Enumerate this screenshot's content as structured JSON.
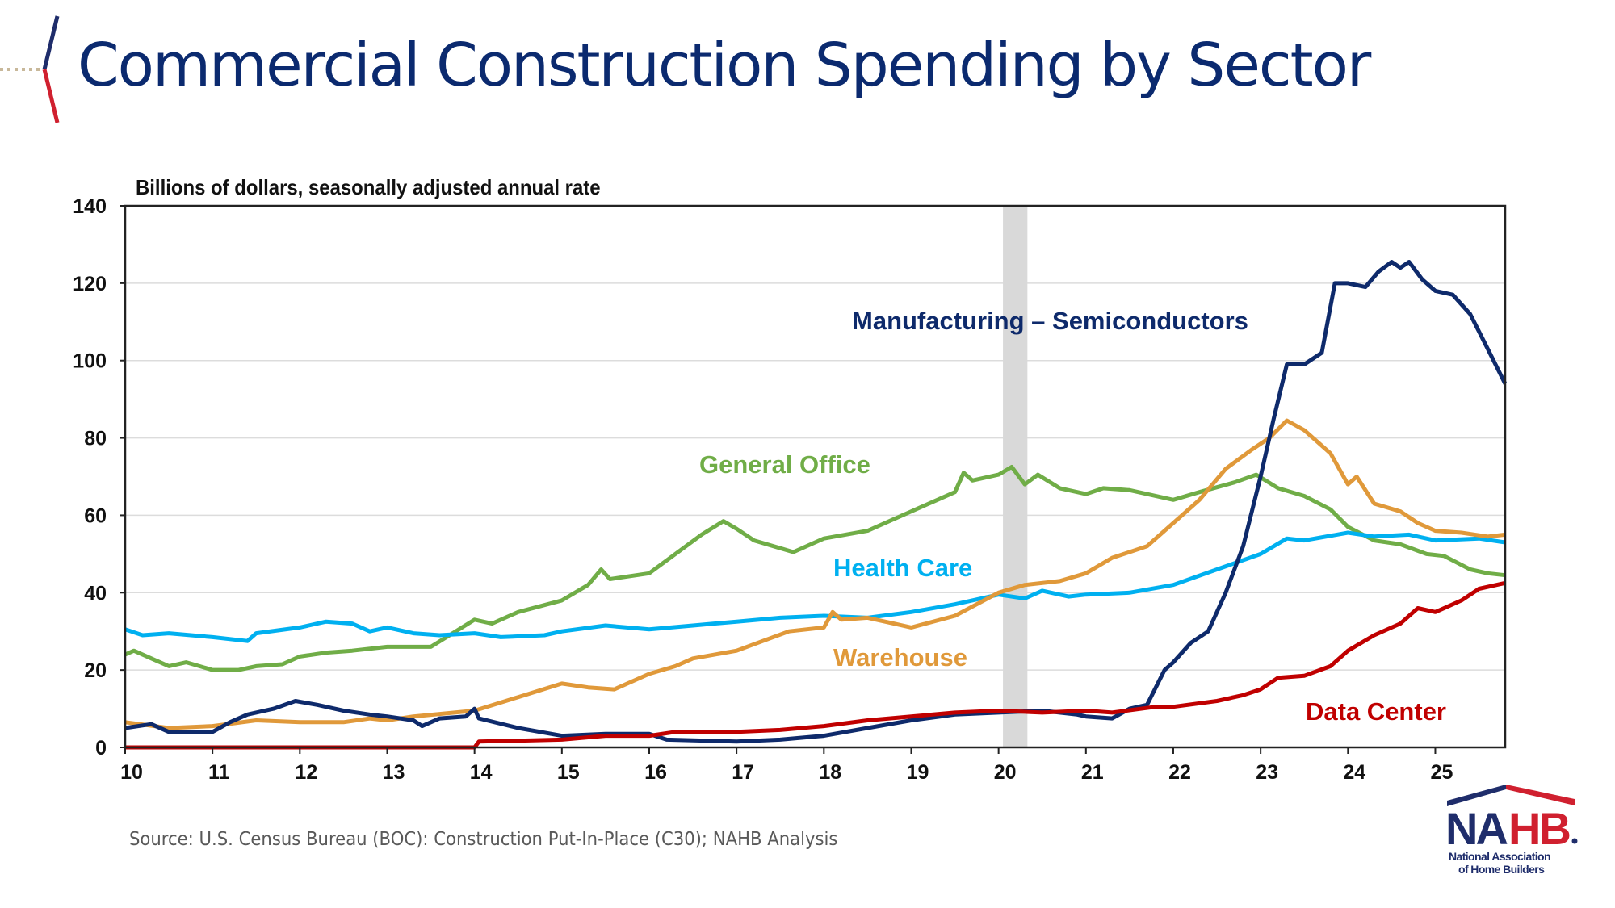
{
  "header": {
    "title": "Commercial Construction Spending by Sector"
  },
  "footer": {
    "source": "Source:  U.S. Census Bureau (BOC): Construction  Put-In-Place (C30); NAHB Analysis"
  },
  "logo": {
    "text": "NAHB",
    "subtitle_1": "National Association",
    "subtitle_2": "of Home Builders",
    "colors": {
      "navy": "#1f2d6b",
      "red": "#d0202f"
    }
  },
  "chart_data": {
    "type": "line",
    "title": "",
    "ylabel": "Billions of dollars, seasonally adjusted annual rate",
    "xlabel": "",
    "ylim": [
      0,
      140
    ],
    "xlim": [
      2010,
      2025.8
    ],
    "grid": true,
    "yticks": [
      "0",
      "20",
      "40",
      "60",
      "80",
      "100",
      "120",
      "140"
    ],
    "xticks": [
      "10",
      "11",
      "12",
      "13",
      "14",
      "15",
      "16",
      "17",
      "18",
      "19",
      "20",
      "21",
      "22",
      "23",
      "24",
      "25"
    ],
    "recession_shading": [
      2020.05,
      2020.33
    ],
    "series": [
      {
        "name": "General Office",
        "color": "#70ad47",
        "x": [
          2010.0,
          2010.1,
          2010.3,
          2010.5,
          2010.7,
          2011.0,
          2011.3,
          2011.5,
          2011.8,
          2012.0,
          2012.3,
          2012.6,
          2013.0,
          2013.5,
          2014.0,
          2014.2,
          2014.5,
          2015.0,
          2015.3,
          2015.45,
          2015.55,
          2016.0,
          2016.3,
          2016.6,
          2016.85,
          2017.0,
          2017.2,
          2017.5,
          2017.65,
          2018.0,
          2018.5,
          2019.0,
          2019.3,
          2019.5,
          2019.6,
          2019.7,
          2020.0,
          2020.15,
          2020.3,
          2020.45,
          2020.7,
          2021.0,
          2021.2,
          2021.5,
          2022.0,
          2022.3,
          2022.7,
          2022.95,
          2023.2,
          2023.5,
          2023.8,
          2024.0,
          2024.3,
          2024.6,
          2024.9,
          2025.1,
          2025.4,
          2025.6,
          2025.8
        ],
        "y": [
          24,
          25,
          23,
          21,
          22,
          20,
          20,
          21,
          21.5,
          23.5,
          24.5,
          25,
          26,
          26,
          33,
          32,
          35,
          38,
          42,
          46,
          43.5,
          45,
          50,
          55,
          58.5,
          56.5,
          53.5,
          51.5,
          50.5,
          54,
          56,
          61,
          64,
          66,
          71,
          69,
          70.5,
          72.5,
          68,
          70.5,
          67,
          65.5,
          67,
          66.5,
          64,
          66,
          68.5,
          70.5,
          67,
          65,
          61.5,
          57,
          53.5,
          52.5,
          50,
          49.5,
          46,
          45,
          44.5
        ]
      },
      {
        "name": "Health Care",
        "color": "#00b0f0",
        "x": [
          2010.0,
          2010.2,
          2010.5,
          2011.0,
          2011.4,
          2011.5,
          2012.0,
          2012.3,
          2012.6,
          2012.8,
          2013.0,
          2013.3,
          2013.6,
          2014.0,
          2014.3,
          2014.8,
          2015.0,
          2015.5,
          2016.0,
          2016.5,
          2017.0,
          2017.5,
          2018.0,
          2018.5,
          2019.0,
          2019.5,
          2020.0,
          2020.3,
          2020.5,
          2020.8,
          2021.0,
          2021.5,
          2022.0,
          2022.5,
          2023.0,
          2023.3,
          2023.5,
          2024.0,
          2024.3,
          2024.7,
          2025.0,
          2025.5,
          2025.8
        ],
        "y": [
          30.5,
          29,
          29.5,
          28.5,
          27.5,
          29.5,
          31,
          32.5,
          32,
          30,
          31,
          29.5,
          29,
          29.5,
          28.5,
          29,
          30,
          31.5,
          30.5,
          31.5,
          32.5,
          33.5,
          34,
          33.5,
          35,
          37,
          39.5,
          38.5,
          40.5,
          39,
          39.5,
          40,
          42,
          46,
          50,
          54,
          53.5,
          55.5,
          54.5,
          55,
          53.5,
          54,
          53
        ]
      },
      {
        "name": "Warehouse",
        "color": "#e0993a",
        "x": [
          2010.0,
          2010.5,
          2011.0,
          2011.5,
          2012.0,
          2012.5,
          2012.8,
          2013.0,
          2013.3,
          2014.0,
          2014.5,
          2015.0,
          2015.3,
          2015.6,
          2016.0,
          2016.3,
          2016.5,
          2017.0,
          2017.3,
          2017.6,
          2018.0,
          2018.1,
          2018.2,
          2018.5,
          2018.8,
          2019.0,
          2019.5,
          2020.0,
          2020.3,
          2020.7,
          2021.0,
          2021.3,
          2021.7,
          2022.0,
          2022.3,
          2022.6,
          2022.9,
          2023.1,
          2023.3,
          2023.5,
          2023.8,
          2024.0,
          2024.1,
          2024.3,
          2024.6,
          2024.8,
          2025.0,
          2025.3,
          2025.6,
          2025.8
        ],
        "y": [
          6.5,
          5,
          5.5,
          7,
          6.5,
          6.5,
          7.5,
          7,
          8,
          9.5,
          13,
          16.5,
          15.5,
          15,
          19,
          21,
          23,
          25,
          27.5,
          30,
          31,
          35,
          33,
          33.5,
          32,
          31,
          34,
          40,
          42,
          43,
          45,
          49,
          52,
          58,
          64,
          72,
          77,
          80,
          84.5,
          82,
          76,
          68,
          70,
          63,
          61,
          58,
          56,
          55.5,
          54.5,
          55
        ]
      },
      {
        "name": "Manufacturing – Semiconductors",
        "color": "#0e2a6b",
        "x": [
          2010.0,
          2010.3,
          2010.5,
          2011.0,
          2011.2,
          2011.4,
          2011.7,
          2011.95,
          2012.2,
          2012.5,
          2012.8,
          2013.0,
          2013.3,
          2013.4,
          2013.6,
          2013.9,
          2014.0,
          2014.05,
          2014.5,
          2015.0,
          2015.5,
          2016.0,
          2016.2,
          2017.0,
          2017.5,
          2018.0,
          2018.5,
          2019.0,
          2019.5,
          2020.0,
          2020.5,
          2020.9,
          2021.0,
          2021.3,
          2021.5,
          2021.7,
          2021.9,
          2022.0,
          2022.2,
          2022.4,
          2022.6,
          2022.8,
          2023.0,
          2023.15,
          2023.3,
          2023.5,
          2023.7,
          2023.85,
          2024.0,
          2024.2,
          2024.35,
          2024.5,
          2024.6,
          2024.7,
          2024.85,
          2025.0,
          2025.2,
          2025.4,
          2025.6,
          2025.8
        ],
        "y": [
          5,
          6,
          4,
          4,
          6.5,
          8.5,
          10,
          12,
          11,
          9.5,
          8.5,
          8,
          7,
          5.5,
          7.5,
          8,
          10,
          7.5,
          5,
          3,
          3.5,
          3.5,
          2,
          1.5,
          2,
          3,
          5,
          7,
          8.5,
          9,
          9.5,
          8.5,
          8,
          7.5,
          10,
          11,
          20,
          22,
          27,
          30,
          40,
          52,
          70,
          85,
          99,
          99,
          102,
          120,
          120,
          119,
          123,
          125.5,
          124,
          125.5,
          121,
          118,
          117,
          112,
          103,
          94
        ]
      },
      {
        "name": "Data Center",
        "color": "#c00000",
        "x": [
          2010.0,
          2014.0,
          2014.05,
          2015.0,
          2015.5,
          2016.0,
          2016.3,
          2017.0,
          2017.5,
          2018.0,
          2018.5,
          2019.0,
          2019.5,
          2020.0,
          2020.5,
          2021.0,
          2021.3,
          2021.8,
          2022.0,
          2022.5,
          2022.8,
          2023.0,
          2023.2,
          2023.5,
          2023.8,
          2024.0,
          2024.3,
          2024.6,
          2024.8,
          2025.0,
          2025.3,
          2025.5,
          2025.8
        ],
        "y": [
          0,
          0,
          1.5,
          2,
          3,
          3,
          4,
          4,
          4.5,
          5.5,
          7,
          8,
          9,
          9.5,
          9,
          9.5,
          9,
          10.5,
          10.5,
          12,
          13.5,
          15,
          18,
          18.5,
          21,
          25,
          29,
          32,
          36,
          35,
          38,
          41,
          42.5
        ]
      }
    ]
  }
}
